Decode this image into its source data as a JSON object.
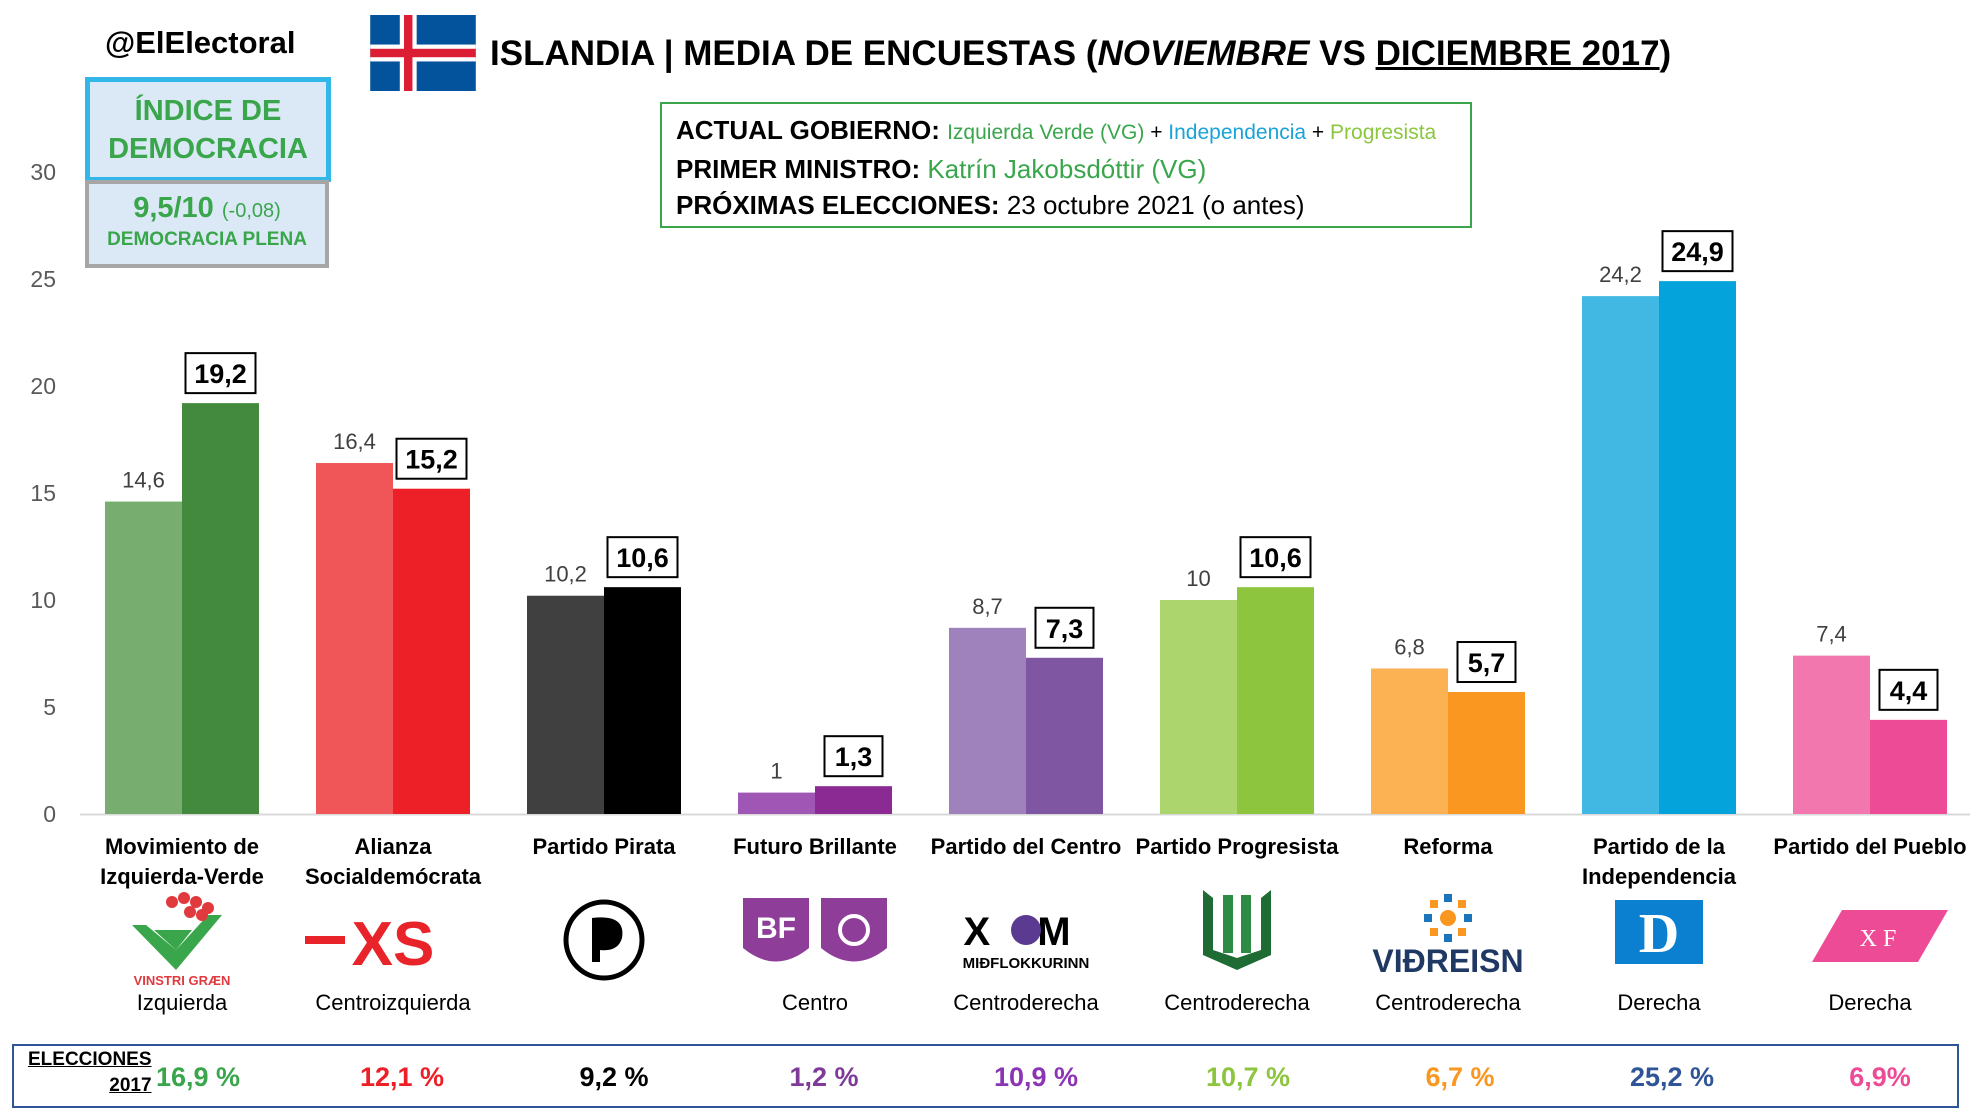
{
  "header": {
    "brand": "@ElElectoral",
    "title_country": "ISLANDIA",
    "title_sep": "|",
    "title_main": "MEDIA DE ENCUESTAS (",
    "title_nov": "NOVIEMBRE",
    "title_vs": " VS ",
    "title_dic": "DICIEMBRE 2017",
    "title_end": ")"
  },
  "democracy": {
    "title_line1": "ÍNDICE DE",
    "title_line2": "DEMOCRACIA",
    "score": "9,5/10",
    "change": "(-0,08)",
    "level": "DEMOCRACIA PLENA"
  },
  "government": {
    "gov_label": "ACTUAL GOBIERNO:",
    "gov_p1": "Izquierda Verde (VG)",
    "gov_plus1": " + ",
    "gov_p2": "Independencia",
    "gov_plus2": " + ",
    "gov_p3": "Progresista",
    "pm_label": "PRIMER MINISTRO:",
    "pm_value": "Katrín Jakobsdóttir (VG)",
    "next_label": "PRÓXIMAS ELECCIONES:",
    "next_value": "23 octubre 2021 (o antes)"
  },
  "colors": {
    "gov_green": "#3aa64b",
    "gov_blue": "#1aa3d9",
    "gov_lightgreen": "#8cc63f"
  },
  "chart_data": {
    "type": "bar",
    "ylim": [
      0,
      30
    ],
    "yticks": [
      "0",
      "5",
      "10",
      "15",
      "20",
      "25",
      "30"
    ],
    "grid": false,
    "categories": [
      "Movimiento de Izquierda-Verde",
      "Alianza Socialdemócrata",
      "Partido Pirata",
      "Futuro Brillante",
      "Partido del Centro",
      "Partido Progresista",
      "Reforma",
      "Partido de la Independencia",
      "Partido del Pueblo"
    ],
    "category_lines": [
      [
        "Movimiento de",
        "Izquierda-Verde"
      ],
      [
        "Alianza",
        "Socialdemócrata"
      ],
      [
        "Partido Pirata"
      ],
      [
        "Futuro Brillante"
      ],
      [
        "Partido del Centro"
      ],
      [
        "Partido Progresista"
      ],
      [
        "Reforma"
      ],
      [
        "Partido de la",
        "Independencia"
      ],
      [
        "Partido del Pueblo"
      ]
    ],
    "series": [
      {
        "period": "Noviembre",
        "values": [
          14.6,
          16.4,
          10.2,
          1,
          8.7,
          10,
          6.8,
          24.2,
          7.4
        ],
        "labels": [
          "14,6",
          "16,4",
          "10,2",
          "1",
          "8,7",
          "10",
          "6,8",
          "24,2",
          "7,4"
        ],
        "colors": [
          "#77ae6f",
          "#f05558",
          "#404040",
          "#9f56b4",
          "#9f82bc",
          "#acd56e",
          "#fcb153",
          "#41b8e4",
          "#f277ae"
        ]
      },
      {
        "period": "Diciembre 2017",
        "values": [
          19.2,
          15.2,
          10.6,
          1.3,
          7.3,
          10.6,
          5.7,
          24.9,
          4.4
        ],
        "labels": [
          "19,2",
          "15,2",
          "10,6",
          "1,3",
          "7,3",
          "10,6",
          "5,7",
          "24,9",
          "4,4"
        ],
        "colors": [
          "#448a3e",
          "#ee2027",
          "#000000",
          "#8b2a92",
          "#7e56a2",
          "#8dc53f",
          "#f99720",
          "#04a3dc",
          "#ee4b97"
        ]
      }
    ],
    "ideologies": [
      "Izquierda",
      "Centroizquierda",
      "",
      "Centro",
      "Centroderecha",
      "Centroderecha",
      "Centroderecha",
      "Derecha",
      "Derecha"
    ]
  },
  "logos": {
    "vg": "VINSTRI GRÆN",
    "xs": "XS",
    "bf": "BF",
    "m_top": "X M",
    "m_bottom": "MIÐFLOKKURINN",
    "vid": "VIÐREISN",
    "d": "D",
    "f": "X F"
  },
  "elections": {
    "label_line1": "ELECCIONES",
    "label_line2": "2017",
    "values": [
      "16,9 %",
      "12,1 %",
      "9,2 %",
      "1,2 %",
      "10,9 %",
      "10,7 %",
      "6,7 %",
      "25,2 %",
      "6,9%"
    ],
    "colors": [
      "#3aa64b",
      "#ee2027",
      "#000000",
      "#7e3a96",
      "#8b35b4",
      "#8dc53f",
      "#f99720",
      "#2f5597",
      "#ee4b97"
    ]
  }
}
